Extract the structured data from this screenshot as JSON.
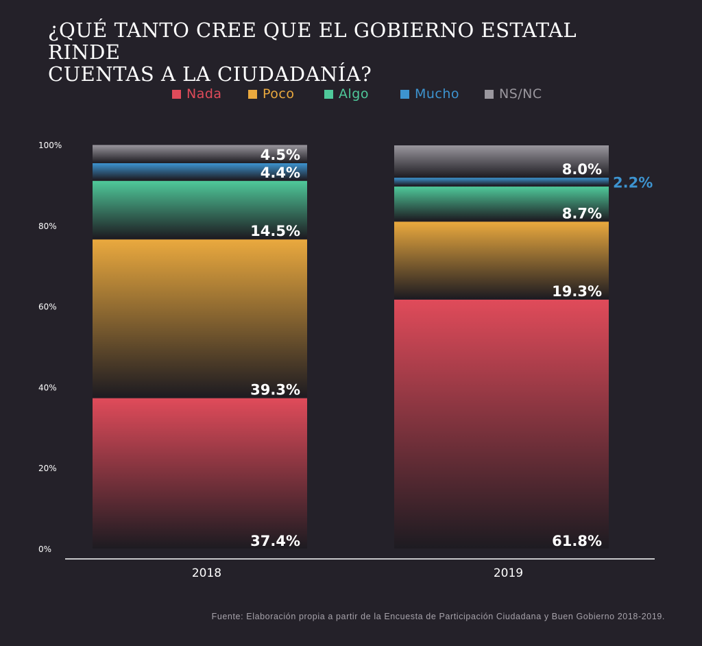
{
  "chart_data": {
    "type": "bar",
    "stacked": true,
    "title_lines": [
      "¿QUÉ TANTO CREE QUE EL GOBIERNO ESTATAL RINDE",
      "CUENTAS A LA CIUDADANÍA?"
    ],
    "categories": [
      "2018",
      "2019"
    ],
    "series": [
      {
        "name": "Nada",
        "color": "#e04b5a",
        "values": [
          37.4,
          61.8
        ],
        "labels": [
          "37.4%",
          "61.8%"
        ]
      },
      {
        "name": "Poco",
        "color": "#eaa93e",
        "values": [
          39.3,
          19.3
        ],
        "labels": [
          "39.3%",
          "19.3%"
        ]
      },
      {
        "name": "Algo",
        "color": "#4fc99a",
        "values": [
          14.5,
          8.7
        ],
        "labels": [
          "14.5%",
          "8.7%"
        ]
      },
      {
        "name": "Mucho",
        "color": "#3d94d0",
        "values": [
          4.4,
          2.2
        ],
        "labels": [
          "4.4%",
          "2.2%"
        ]
      },
      {
        "name": "NS/NC",
        "color": "#9a979e",
        "values": [
          4.5,
          8.0
        ],
        "labels": [
          "4.5%",
          "8.0%"
        ]
      }
    ],
    "ylim": [
      0,
      100
    ],
    "yticks": [
      "0%",
      "20%",
      "40%",
      "60%",
      "80%",
      "100%"
    ],
    "legend_position": "top"
  },
  "source": "Fuente: Elaboración propia a partir de la Encuesta de Participación Ciudadana y Buen Gobierno 2018-2019."
}
